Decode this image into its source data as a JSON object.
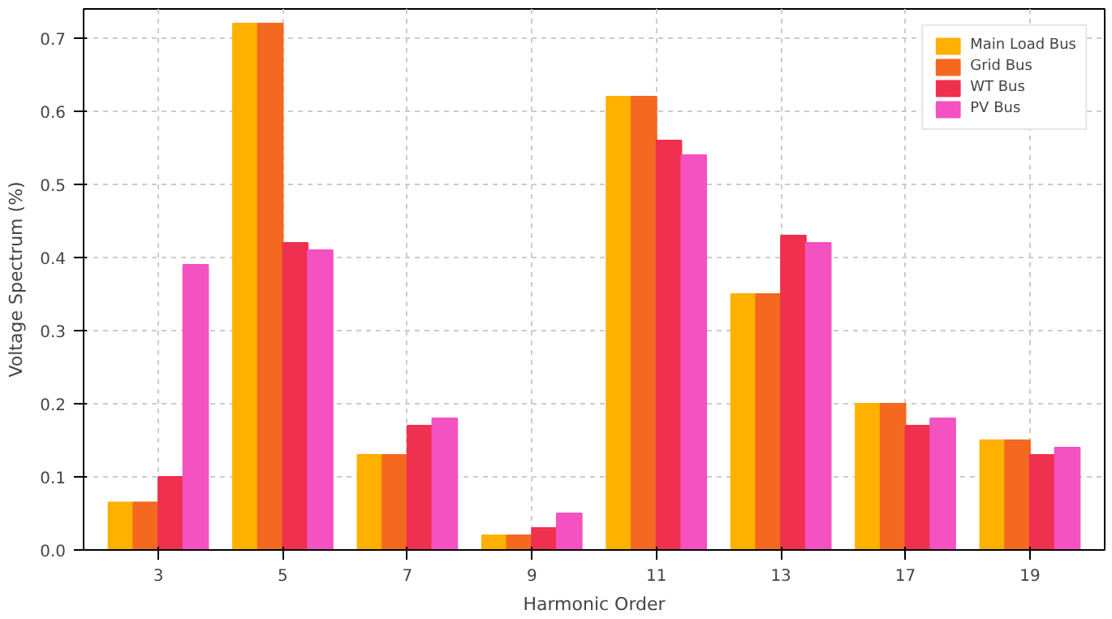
{
  "chart_data": {
    "type": "bar",
    "xlabel": "Harmonic Order",
    "ylabel": "Voltage Spectrum (%)",
    "categories": [
      "3",
      "5",
      "7",
      "9",
      "11",
      "13",
      "17",
      "19"
    ],
    "series": [
      {
        "name": "Main Load Bus",
        "color": "#ffb000",
        "values": [
          0.065,
          0.72,
          0.13,
          0.02,
          0.62,
          0.35,
          0.2,
          0.15
        ]
      },
      {
        "name": "Grid Bus",
        "color": "#f4691f",
        "values": [
          0.065,
          0.72,
          0.13,
          0.02,
          0.62,
          0.35,
          0.2,
          0.15
        ]
      },
      {
        "name": "WT Bus",
        "color": "#f0304f",
        "values": [
          0.1,
          0.42,
          0.17,
          0.03,
          0.56,
          0.43,
          0.17,
          0.13
        ]
      },
      {
        "name": "PV Bus",
        "color": "#f452c0",
        "values": [
          0.39,
          0.41,
          0.18,
          0.05,
          0.54,
          0.42,
          0.18,
          0.14
        ]
      }
    ],
    "ylim": [
      0,
      0.74
    ],
    "yticks": [
      {
        "value": 0,
        "label": "0.0"
      },
      0.1,
      0.2,
      0.3,
      0.4,
      0.5,
      0.6,
      0.7
    ],
    "grid": true,
    "legend": "top right"
  }
}
